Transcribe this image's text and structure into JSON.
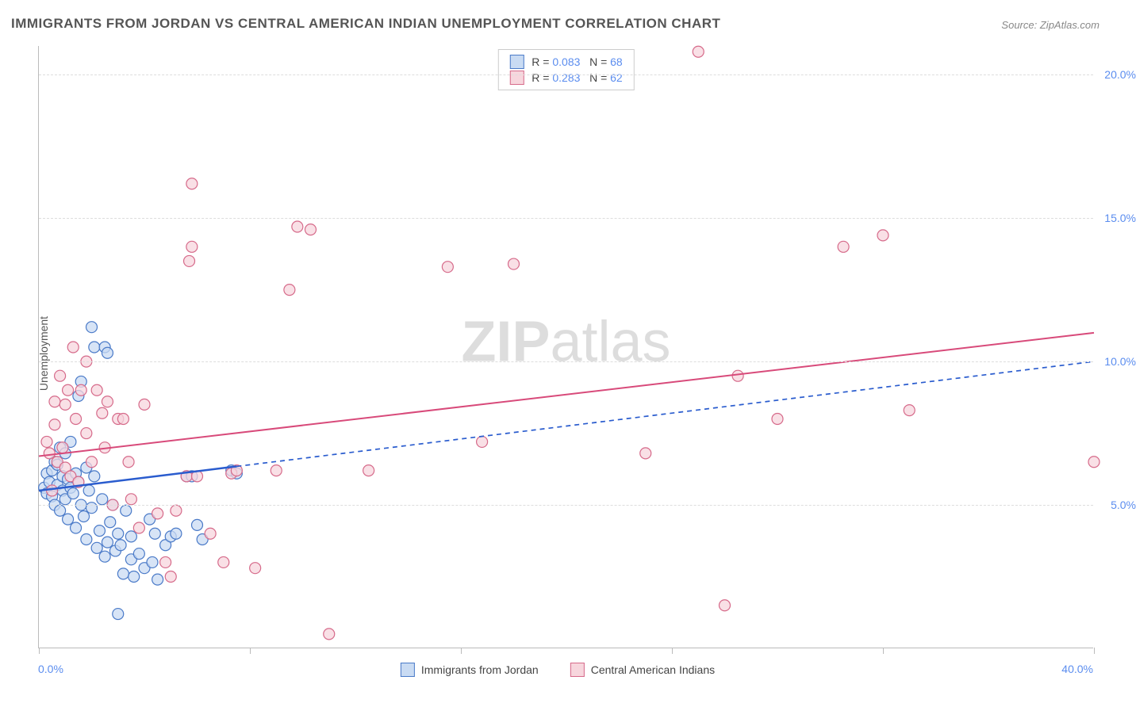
{
  "title": "IMMIGRANTS FROM JORDAN VS CENTRAL AMERICAN INDIAN UNEMPLOYMENT CORRELATION CHART",
  "source_label": "Source:",
  "source_name": "ZipAtlas.com",
  "ylabel": "Unemployment",
  "watermark_bold": "ZIP",
  "watermark_light": "atlas",
  "chart": {
    "type": "scatter",
    "background_color": "#ffffff",
    "grid_color": "#dddddd",
    "axis_color": "#bbbbbb",
    "xlim": [
      0,
      40
    ],
    "ylim": [
      0,
      21
    ],
    "x_ticks": [
      0,
      8,
      16,
      24,
      32,
      40
    ],
    "y_gridlines": [
      5,
      10,
      15,
      20
    ],
    "y_tick_labels": [
      "5.0%",
      "10.0%",
      "15.0%",
      "20.0%"
    ],
    "x_min_label": "0.0%",
    "x_max_label": "40.0%",
    "marker_radius": 7,
    "marker_stroke_width": 1.2,
    "line_width": 2,
    "series": [
      {
        "name": "Immigrants from Jordan",
        "fill": "#c9dbf3",
        "stroke": "#4a7ac8",
        "line_color": "#2a5cce",
        "line_dash_after_x": 7.5,
        "r_value": "0.083",
        "n_value": "68",
        "trend": {
          "x1": 0,
          "y1": 5.5,
          "x2": 40,
          "y2": 10.0
        },
        "points": [
          [
            0.2,
            5.6
          ],
          [
            0.3,
            6.1
          ],
          [
            0.3,
            5.4
          ],
          [
            0.4,
            5.8
          ],
          [
            0.5,
            6.2
          ],
          [
            0.5,
            5.3
          ],
          [
            0.6,
            6.5
          ],
          [
            0.6,
            5.0
          ],
          [
            0.7,
            5.7
          ],
          [
            0.7,
            6.4
          ],
          [
            0.8,
            4.8
          ],
          [
            0.8,
            7.0
          ],
          [
            0.9,
            5.5
          ],
          [
            0.9,
            6.0
          ],
          [
            1.0,
            5.2
          ],
          [
            1.0,
            6.8
          ],
          [
            1.1,
            4.5
          ],
          [
            1.1,
            5.9
          ],
          [
            1.2,
            5.6
          ],
          [
            1.2,
            7.2
          ],
          [
            1.3,
            5.4
          ],
          [
            1.4,
            6.1
          ],
          [
            1.4,
            4.2
          ],
          [
            1.5,
            5.8
          ],
          [
            1.5,
            8.8
          ],
          [
            1.6,
            9.3
          ],
          [
            1.6,
            5.0
          ],
          [
            1.7,
            4.6
          ],
          [
            1.8,
            6.3
          ],
          [
            1.8,
            3.8
          ],
          [
            1.9,
            5.5
          ],
          [
            2.0,
            4.9
          ],
          [
            2.0,
            11.2
          ],
          [
            2.1,
            10.5
          ],
          [
            2.1,
            6.0
          ],
          [
            2.2,
            3.5
          ],
          [
            2.3,
            4.1
          ],
          [
            2.4,
            5.2
          ],
          [
            2.5,
            3.2
          ],
          [
            2.5,
            10.5
          ],
          [
            2.6,
            10.3
          ],
          [
            2.6,
            3.7
          ],
          [
            2.7,
            4.4
          ],
          [
            2.8,
            5.0
          ],
          [
            2.9,
            3.4
          ],
          [
            3.0,
            4.0
          ],
          [
            3.0,
            1.2
          ],
          [
            3.1,
            3.6
          ],
          [
            3.2,
            2.6
          ],
          [
            3.3,
            4.8
          ],
          [
            3.5,
            3.1
          ],
          [
            3.5,
            3.9
          ],
          [
            3.6,
            2.5
          ],
          [
            3.8,
            3.3
          ],
          [
            4.0,
            2.8
          ],
          [
            4.2,
            4.5
          ],
          [
            4.3,
            3.0
          ],
          [
            4.4,
            4.0
          ],
          [
            4.5,
            2.4
          ],
          [
            4.8,
            3.6
          ],
          [
            5.0,
            3.9
          ],
          [
            5.2,
            4.0
          ],
          [
            5.6,
            6.0
          ],
          [
            5.8,
            6.0
          ],
          [
            6.0,
            4.3
          ],
          [
            6.2,
            3.8
          ],
          [
            7.3,
            6.2
          ],
          [
            7.5,
            6.1
          ]
        ]
      },
      {
        "name": "Central American Indians",
        "fill": "#f7d6dd",
        "stroke": "#d66a8a",
        "line_color": "#d84a7a",
        "r_value": "0.283",
        "n_value": "62",
        "trend": {
          "x1": 0,
          "y1": 6.7,
          "x2": 40,
          "y2": 11.0
        },
        "points": [
          [
            0.3,
            7.2
          ],
          [
            0.4,
            6.8
          ],
          [
            0.5,
            5.5
          ],
          [
            0.6,
            8.6
          ],
          [
            0.7,
            6.5
          ],
          [
            0.8,
            9.5
          ],
          [
            0.9,
            7.0
          ],
          [
            1.0,
            8.5
          ],
          [
            1.0,
            6.3
          ],
          [
            1.2,
            6.0
          ],
          [
            1.3,
            10.5
          ],
          [
            1.4,
            8.0
          ],
          [
            1.5,
            5.8
          ],
          [
            1.6,
            9.0
          ],
          [
            1.8,
            7.5
          ],
          [
            1.8,
            10.0
          ],
          [
            2.0,
            6.5
          ],
          [
            2.2,
            9.0
          ],
          [
            2.4,
            8.2
          ],
          [
            2.5,
            7.0
          ],
          [
            2.6,
            8.6
          ],
          [
            2.8,
            5.0
          ],
          [
            3.0,
            8.0
          ],
          [
            3.2,
            8.0
          ],
          [
            3.4,
            6.5
          ],
          [
            3.5,
            5.2
          ],
          [
            3.8,
            4.2
          ],
          [
            4.0,
            8.5
          ],
          [
            4.5,
            4.7
          ],
          [
            4.8,
            3.0
          ],
          [
            5.0,
            2.5
          ],
          [
            5.2,
            4.8
          ],
          [
            5.6,
            6.0
          ],
          [
            5.8,
            14.0
          ],
          [
            5.7,
            13.5
          ],
          [
            5.8,
            16.2
          ],
          [
            6.0,
            6.0
          ],
          [
            6.5,
            4.0
          ],
          [
            7.0,
            3.0
          ],
          [
            7.3,
            6.1
          ],
          [
            7.5,
            6.2
          ],
          [
            8.2,
            2.8
          ],
          [
            9.0,
            6.2
          ],
          [
            9.5,
            12.5
          ],
          [
            9.8,
            14.7
          ],
          [
            10.3,
            14.6
          ],
          [
            11.0,
            0.5
          ],
          [
            12.5,
            6.2
          ],
          [
            15.5,
            13.3
          ],
          [
            16.8,
            7.2
          ],
          [
            18.0,
            13.4
          ],
          [
            23.0,
            6.8
          ],
          [
            25.0,
            20.8
          ],
          [
            26.5,
            9.5
          ],
          [
            26.0,
            1.5
          ],
          [
            28.0,
            8.0
          ],
          [
            30.5,
            14.0
          ],
          [
            32.0,
            14.4
          ],
          [
            33.0,
            8.3
          ],
          [
            40.0,
            6.5
          ],
          [
            0.6,
            7.8
          ],
          [
            1.1,
            9.0
          ]
        ]
      }
    ],
    "top_box_labels": {
      "r_prefix": "R =",
      "n_prefix": "N ="
    },
    "bottom_legend_labels": [
      "Immigrants from Jordan",
      "Central American Indians"
    ],
    "title_fontsize": 17,
    "label_fontsize": 14
  }
}
